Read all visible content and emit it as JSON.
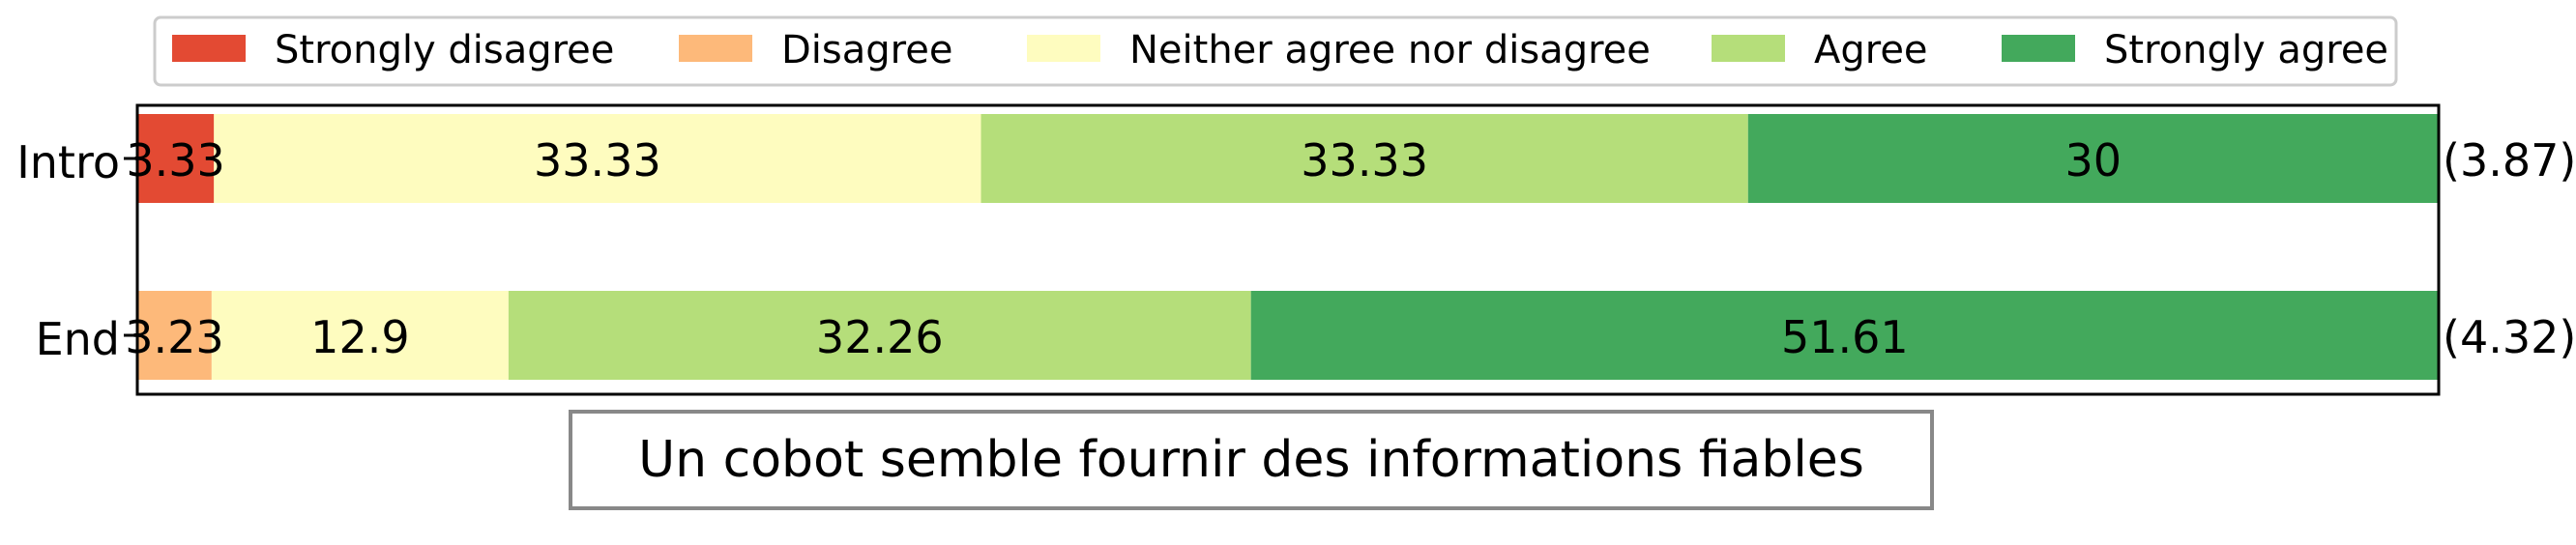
{
  "chart_data": {
    "type": "bar",
    "orientation": "horizontal",
    "stacked": true,
    "title": "Un cobot semble fournir des informations fiables",
    "xlabel": "",
    "ylabel": "",
    "xlim": [
      0,
      100
    ],
    "grid": false,
    "legend_position": "top",
    "categories": [
      "Intro",
      "End"
    ],
    "mean_labels": [
      "(3.87)",
      "(4.32)"
    ],
    "series": [
      {
        "name": "Strongly disagree",
        "color": "#e34a33",
        "values": [
          3.33,
          0
        ]
      },
      {
        "name": "Disagree",
        "color": "#fdb97a",
        "values": [
          0,
          3.23
        ]
      },
      {
        "name": "Neither agree nor disagree",
        "color": "#fefcbf",
        "values": [
          33.33,
          12.9
        ]
      },
      {
        "name": "Agree",
        "color": "#b5de7a",
        "values": [
          33.33,
          32.26
        ]
      },
      {
        "name": "Strongly agree",
        "color": "#43a95c",
        "values": [
          30,
          51.61
        ]
      }
    ]
  }
}
